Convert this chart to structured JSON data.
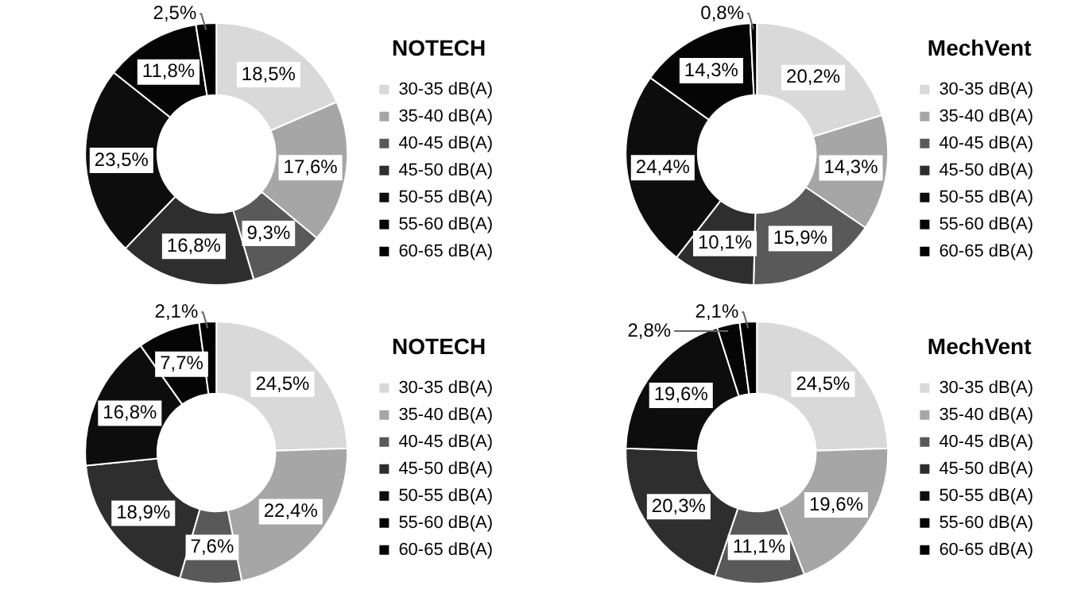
{
  "chart_data": [
    {
      "type": "donut",
      "legend_title": "NOTECH",
      "legend": "right",
      "categories": [
        "30-35 dB(A)",
        "35-40 dB(A)",
        "40-45 dB(A)",
        "45-50 dB(A)",
        "50-55 dB(A)",
        "55-60 dB(A)",
        "60-65 dB(A)"
      ],
      "values": [
        18.5,
        17.6,
        9.3,
        16.8,
        23.5,
        11.8,
        2.5
      ],
      "value_labels": [
        "18,5%",
        "17,6%",
        "9,3%",
        "16,8%",
        "23,5%",
        "11,8%",
        "2,5%"
      ],
      "colors": [
        "#d9d9d9",
        "#a6a6a6",
        "#595959",
        "#2e2e2e",
        "#0d0d0d",
        "#050505",
        "#000000"
      ]
    },
    {
      "type": "donut",
      "legend_title": "MechVent",
      "legend": "right",
      "categories": [
        "30-35 dB(A)",
        "35-40 dB(A)",
        "40-45 dB(A)",
        "45-50 dB(A)",
        "50-55 dB(A)",
        "55-60 dB(A)",
        "60-65 dB(A)"
      ],
      "values": [
        20.2,
        14.3,
        15.9,
        10.1,
        24.4,
        14.3,
        0.8
      ],
      "value_labels": [
        "20,2%",
        "14,3%",
        "15,9%",
        "10,1%",
        "24,4%",
        "14,3%",
        "0,8%"
      ],
      "colors": [
        "#d9d9d9",
        "#a6a6a6",
        "#595959",
        "#2e2e2e",
        "#0d0d0d",
        "#050505",
        "#000000"
      ]
    },
    {
      "type": "donut",
      "legend_title": "NOTECH",
      "legend": "right",
      "categories": [
        "30-35 dB(A)",
        "35-40 dB(A)",
        "40-45 dB(A)",
        "45-50 dB(A)",
        "50-55 dB(A)",
        "55-60 dB(A)",
        "60-65 dB(A)"
      ],
      "values": [
        24.5,
        22.4,
        7.6,
        18.9,
        16.8,
        7.7,
        2.1
      ],
      "value_labels": [
        "24,5%",
        "22,4%",
        "7,6%",
        "18,9%",
        "16,8%",
        "7,7%",
        "2,1%"
      ],
      "colors": [
        "#d9d9d9",
        "#a6a6a6",
        "#595959",
        "#2e2e2e",
        "#0d0d0d",
        "#050505",
        "#000000"
      ]
    },
    {
      "type": "donut",
      "legend_title": "MechVent",
      "legend": "right",
      "categories": [
        "30-35 dB(A)",
        "35-40 dB(A)",
        "40-45 dB(A)",
        "45-50 dB(A)",
        "50-55 dB(A)",
        "55-60 dB(A)",
        "60-65 dB(A)"
      ],
      "values": [
        24.5,
        19.6,
        11.1,
        20.3,
        19.6,
        2.8,
        2.1
      ],
      "value_labels": [
        "24,5%",
        "19,6%",
        "11,1%",
        "20,3%",
        "19,6%",
        "2,8%",
        "2,1%"
      ],
      "colors": [
        "#d9d9d9",
        "#a6a6a6",
        "#595959",
        "#2e2e2e",
        "#0d0d0d",
        "#050505",
        "#000000"
      ]
    }
  ]
}
